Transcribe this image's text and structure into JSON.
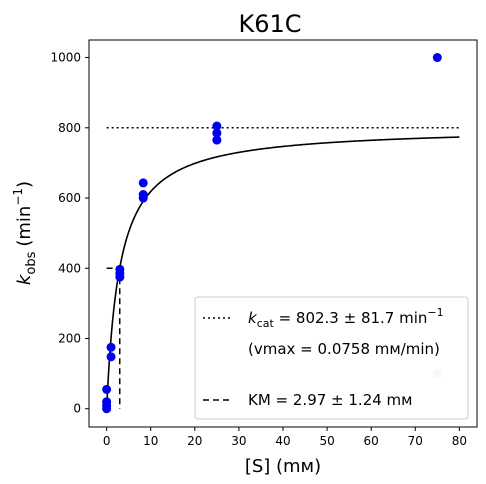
{
  "chart_data": {
    "type": "scatter",
    "title": "K61C",
    "xlabel_main": "[S] (mм)",
    "ylabel_main": "k",
    "ylabel_sub": "obs",
    "ylabel_unit": "(min",
    "ylabel_exp": "−1",
    "ylabel_close": ")",
    "xlim": [
      -4,
      84
    ],
    "ylim": [
      -52,
      1050
    ],
    "xticks": [
      0,
      10,
      20,
      30,
      40,
      50,
      60,
      70,
      80
    ],
    "yticks": [
      0,
      200,
      400,
      600,
      800,
      1000
    ],
    "grid": false,
    "legend_position": "bottom-right",
    "colors": {
      "points": "#0000ee",
      "outlier": "#c8c8f2",
      "fit": "#000000"
    },
    "points": [
      {
        "x": 0,
        "y": 0
      },
      {
        "x": 0,
        "y": 10
      },
      {
        "x": 0,
        "y": 20
      },
      {
        "x": 0,
        "y": 55
      },
      {
        "x": 1,
        "y": 148
      },
      {
        "x": 1,
        "y": 175
      },
      {
        "x": 3,
        "y": 375
      },
      {
        "x": 3,
        "y": 385
      },
      {
        "x": 3,
        "y": 397
      },
      {
        "x": 8.3,
        "y": 600
      },
      {
        "x": 8.3,
        "y": 610
      },
      {
        "x": 8.3,
        "y": 643
      },
      {
        "x": 25,
        "y": 765
      },
      {
        "x": 25,
        "y": 785
      },
      {
        "x": 25,
        "y": 805
      },
      {
        "x": 75,
        "y": 1000
      }
    ],
    "faded_points": [
      {
        "x": 75,
        "y": 100
      }
    ],
    "fit": {
      "kcat": 802.3,
      "KM": 2.97,
      "x_range": [
        0,
        80
      ]
    },
    "kcat_line": {
      "y": 800,
      "x_range": [
        0,
        80
      ]
    },
    "KM_marker": {
      "x": 2.97,
      "y_half": 400
    },
    "legend": {
      "kcat_symbol": "k",
      "kcat_sub": "cat",
      "kcat_text": " = 802.3 ± 81.7 min",
      "kcat_exp": "−1",
      "vmax_text": "(vmax = 0.0758 mм/min)",
      "km_text": "KM = 2.97 ± 1.24 mм"
    }
  }
}
